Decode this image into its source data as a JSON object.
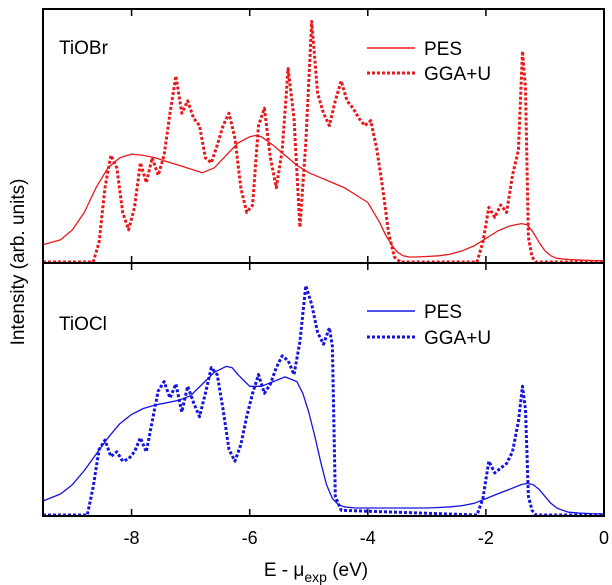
{
  "chart_data": {
    "type": "line",
    "xlabel_main": "E - μ",
    "xlabel_sub": "exp",
    "xlabel_unit": " (eV)",
    "ylabel": "Intensity (arb. units)",
    "xlim": [
      -9.5,
      0
    ],
    "xticks": [
      -8,
      -6,
      -4,
      -2,
      0
    ],
    "xtick_labels": [
      "-8",
      "-6",
      "-4",
      "-2",
      "0"
    ],
    "grid": false,
    "panels": [
      {
        "label": "TiOBr",
        "color": "#e8191c",
        "legend_position": "top-right",
        "ylim": [
          0,
          1
        ],
        "series": [
          {
            "name": "PES",
            "style": "solid",
            "x": [
              -9.5,
              -9.2,
              -9.0,
              -8.8,
              -8.6,
              -8.4,
              -8.2,
              -8.0,
              -7.8,
              -7.6,
              -7.4,
              -7.2,
              -7.0,
              -6.8,
              -6.6,
              -6.4,
              -6.2,
              -6.0,
              -5.9,
              -5.8,
              -5.6,
              -5.4,
              -5.2,
              -5.0,
              -4.8,
              -4.6,
              -4.4,
              -4.2,
              -4.0,
              -3.9,
              -3.8,
              -3.7,
              -3.6,
              -3.5,
              -3.4,
              -3.3,
              -3.2,
              -3.0,
              -2.8,
              -2.6,
              -2.4,
              -2.2,
              -2.0,
              -1.8,
              -1.6,
              -1.4,
              -1.3,
              -1.2,
              -1.1,
              -1.0,
              -0.9,
              -0.8,
              -0.6,
              -0.4,
              -0.2,
              0.0
            ],
            "y": [
              0.07,
              0.09,
              0.13,
              0.2,
              0.3,
              0.38,
              0.42,
              0.435,
              0.43,
              0.42,
              0.405,
              0.39,
              0.375,
              0.36,
              0.38,
              0.43,
              0.48,
              0.505,
              0.51,
              0.505,
              0.47,
              0.43,
              0.39,
              0.36,
              0.34,
              0.32,
              0.3,
              0.27,
              0.24,
              0.2,
              0.16,
              0.11,
              0.07,
              0.04,
              0.025,
              0.02,
              0.02,
              0.022,
              0.025,
              0.032,
              0.045,
              0.065,
              0.095,
              0.125,
              0.145,
              0.155,
              0.15,
              0.12,
              0.08,
              0.045,
              0.025,
              0.015,
              0.01,
              0.008,
              0.006,
              0.005
            ]
          },
          {
            "name": "GGA+U",
            "style": "dotted",
            "x": [
              -9.5,
              -8.65,
              -8.55,
              -8.45,
              -8.35,
              -8.25,
              -8.15,
              -8.05,
              -7.95,
              -7.85,
              -7.75,
              -7.65,
              -7.55,
              -7.45,
              -7.35,
              -7.25,
              -7.15,
              -7.05,
              -6.95,
              -6.85,
              -6.75,
              -6.65,
              -6.55,
              -6.45,
              -6.35,
              -6.25,
              -6.15,
              -6.05,
              -5.95,
              -5.85,
              -5.75,
              -5.65,
              -5.55,
              -5.45,
              -5.35,
              -5.25,
              -5.15,
              -5.05,
              -4.95,
              -4.85,
              -4.75,
              -4.65,
              -4.55,
              -4.45,
              -4.35,
              -4.25,
              -4.15,
              -4.05,
              -3.95,
              -3.85,
              -3.75,
              -3.65,
              -3.55,
              -3.45,
              -2.15,
              -2.05,
              -1.95,
              -1.85,
              -1.75,
              -1.65,
              -1.55,
              -1.45,
              -1.38,
              -1.33,
              -1.28,
              -1.22,
              -1.15,
              -1.05,
              0.0
            ],
            "y": [
              0.0,
              0.0,
              0.08,
              0.3,
              0.43,
              0.38,
              0.2,
              0.13,
              0.22,
              0.4,
              0.32,
              0.42,
              0.35,
              0.43,
              0.6,
              0.75,
              0.6,
              0.65,
              0.58,
              0.55,
              0.42,
              0.4,
              0.47,
              0.55,
              0.6,
              0.5,
              0.3,
              0.2,
              0.23,
              0.55,
              0.62,
              0.42,
              0.3,
              0.45,
              0.78,
              0.58,
              0.14,
              0.48,
              0.97,
              0.68,
              0.6,
              0.55,
              0.65,
              0.73,
              0.65,
              0.62,
              0.58,
              0.55,
              0.57,
              0.46,
              0.3,
              0.12,
              0.02,
              0.0,
              0.0,
              0.08,
              0.22,
              0.18,
              0.23,
              0.2,
              0.35,
              0.45,
              0.85,
              0.7,
              0.1,
              0.02,
              0.0,
              0.0,
              0.0
            ]
          }
        ]
      },
      {
        "label": "TiOCl",
        "color": "#1414e0",
        "legend_position": "top-right",
        "ylim": [
          0,
          1
        ],
        "series": [
          {
            "name": "PES",
            "style": "solid",
            "x": [
              -9.5,
              -9.2,
              -9.0,
              -8.8,
              -8.6,
              -8.4,
              -8.2,
              -8.0,
              -7.8,
              -7.6,
              -7.4,
              -7.2,
              -7.0,
              -6.8,
              -6.6,
              -6.4,
              -6.3,
              -6.2,
              -6.0,
              -5.8,
              -5.6,
              -5.4,
              -5.2,
              -5.1,
              -5.0,
              -4.9,
              -4.8,
              -4.7,
              -4.6,
              -4.5,
              -4.4,
              -4.3,
              -4.2,
              -4.0,
              -3.8,
              -3.6,
              -3.4,
              -3.2,
              -3.0,
              -2.8,
              -2.6,
              -2.4,
              -2.2,
              -2.0,
              -1.8,
              -1.6,
              -1.4,
              -1.3,
              -1.2,
              -1.1,
              -1.0,
              -0.9,
              -0.8,
              -0.7,
              -0.6,
              -0.4,
              -0.2,
              0.0
            ],
            "y": [
              0.06,
              0.09,
              0.13,
              0.19,
              0.26,
              0.33,
              0.39,
              0.43,
              0.455,
              0.47,
              0.48,
              0.49,
              0.51,
              0.56,
              0.61,
              0.635,
              0.63,
              0.6,
              0.55,
              0.55,
              0.57,
              0.59,
              0.57,
              0.52,
              0.44,
              0.34,
              0.23,
              0.13,
              0.07,
              0.045,
              0.035,
              0.032,
              0.03,
              0.03,
              0.03,
              0.03,
              0.03,
              0.03,
              0.03,
              0.032,
              0.035,
              0.04,
              0.05,
              0.07,
              0.09,
              0.11,
              0.13,
              0.135,
              0.13,
              0.11,
              0.08,
              0.05,
              0.03,
              0.02,
              0.012,
              0.008,
              0.006,
              0.005
            ]
          },
          {
            "name": "GGA+U",
            "style": "dotted",
            "x": [
              -9.5,
              -8.75,
              -8.65,
              -8.55,
              -8.45,
              -8.35,
              -8.25,
              -8.15,
              -8.05,
              -7.95,
              -7.85,
              -7.75,
              -7.65,
              -7.55,
              -7.45,
              -7.35,
              -7.25,
              -7.15,
              -7.05,
              -6.95,
              -6.85,
              -6.75,
              -6.65,
              -6.55,
              -6.45,
              -6.35,
              -6.25,
              -6.15,
              -6.05,
              -5.95,
              -5.85,
              -5.75,
              -5.65,
              -5.55,
              -5.45,
              -5.35,
              -5.25,
              -5.15,
              -5.05,
              -4.95,
              -4.85,
              -4.75,
              -4.65,
              -4.6,
              -4.55,
              -4.45,
              -2.15,
              -2.05,
              -1.95,
              -1.85,
              -1.75,
              -1.65,
              -1.55,
              -1.45,
              -1.38,
              -1.33,
              -1.28,
              -1.22,
              -1.15,
              -1.05,
              0.0
            ],
            "y": [
              0.0,
              0.0,
              0.12,
              0.28,
              0.32,
              0.25,
              0.27,
              0.23,
              0.24,
              0.27,
              0.33,
              0.27,
              0.4,
              0.53,
              0.57,
              0.5,
              0.56,
              0.44,
              0.55,
              0.48,
              0.42,
              0.52,
              0.63,
              0.6,
              0.45,
              0.28,
              0.23,
              0.3,
              0.42,
              0.52,
              0.6,
              0.52,
              0.56,
              0.63,
              0.68,
              0.66,
              0.6,
              0.74,
              0.98,
              0.9,
              0.78,
              0.73,
              0.8,
              0.72,
              0.08,
              0.02,
              0.0,
              0.07,
              0.23,
              0.18,
              0.2,
              0.22,
              0.27,
              0.4,
              0.55,
              0.45,
              0.08,
              0.02,
              0.0,
              0.0,
              0.0
            ]
          }
        ]
      }
    ]
  }
}
